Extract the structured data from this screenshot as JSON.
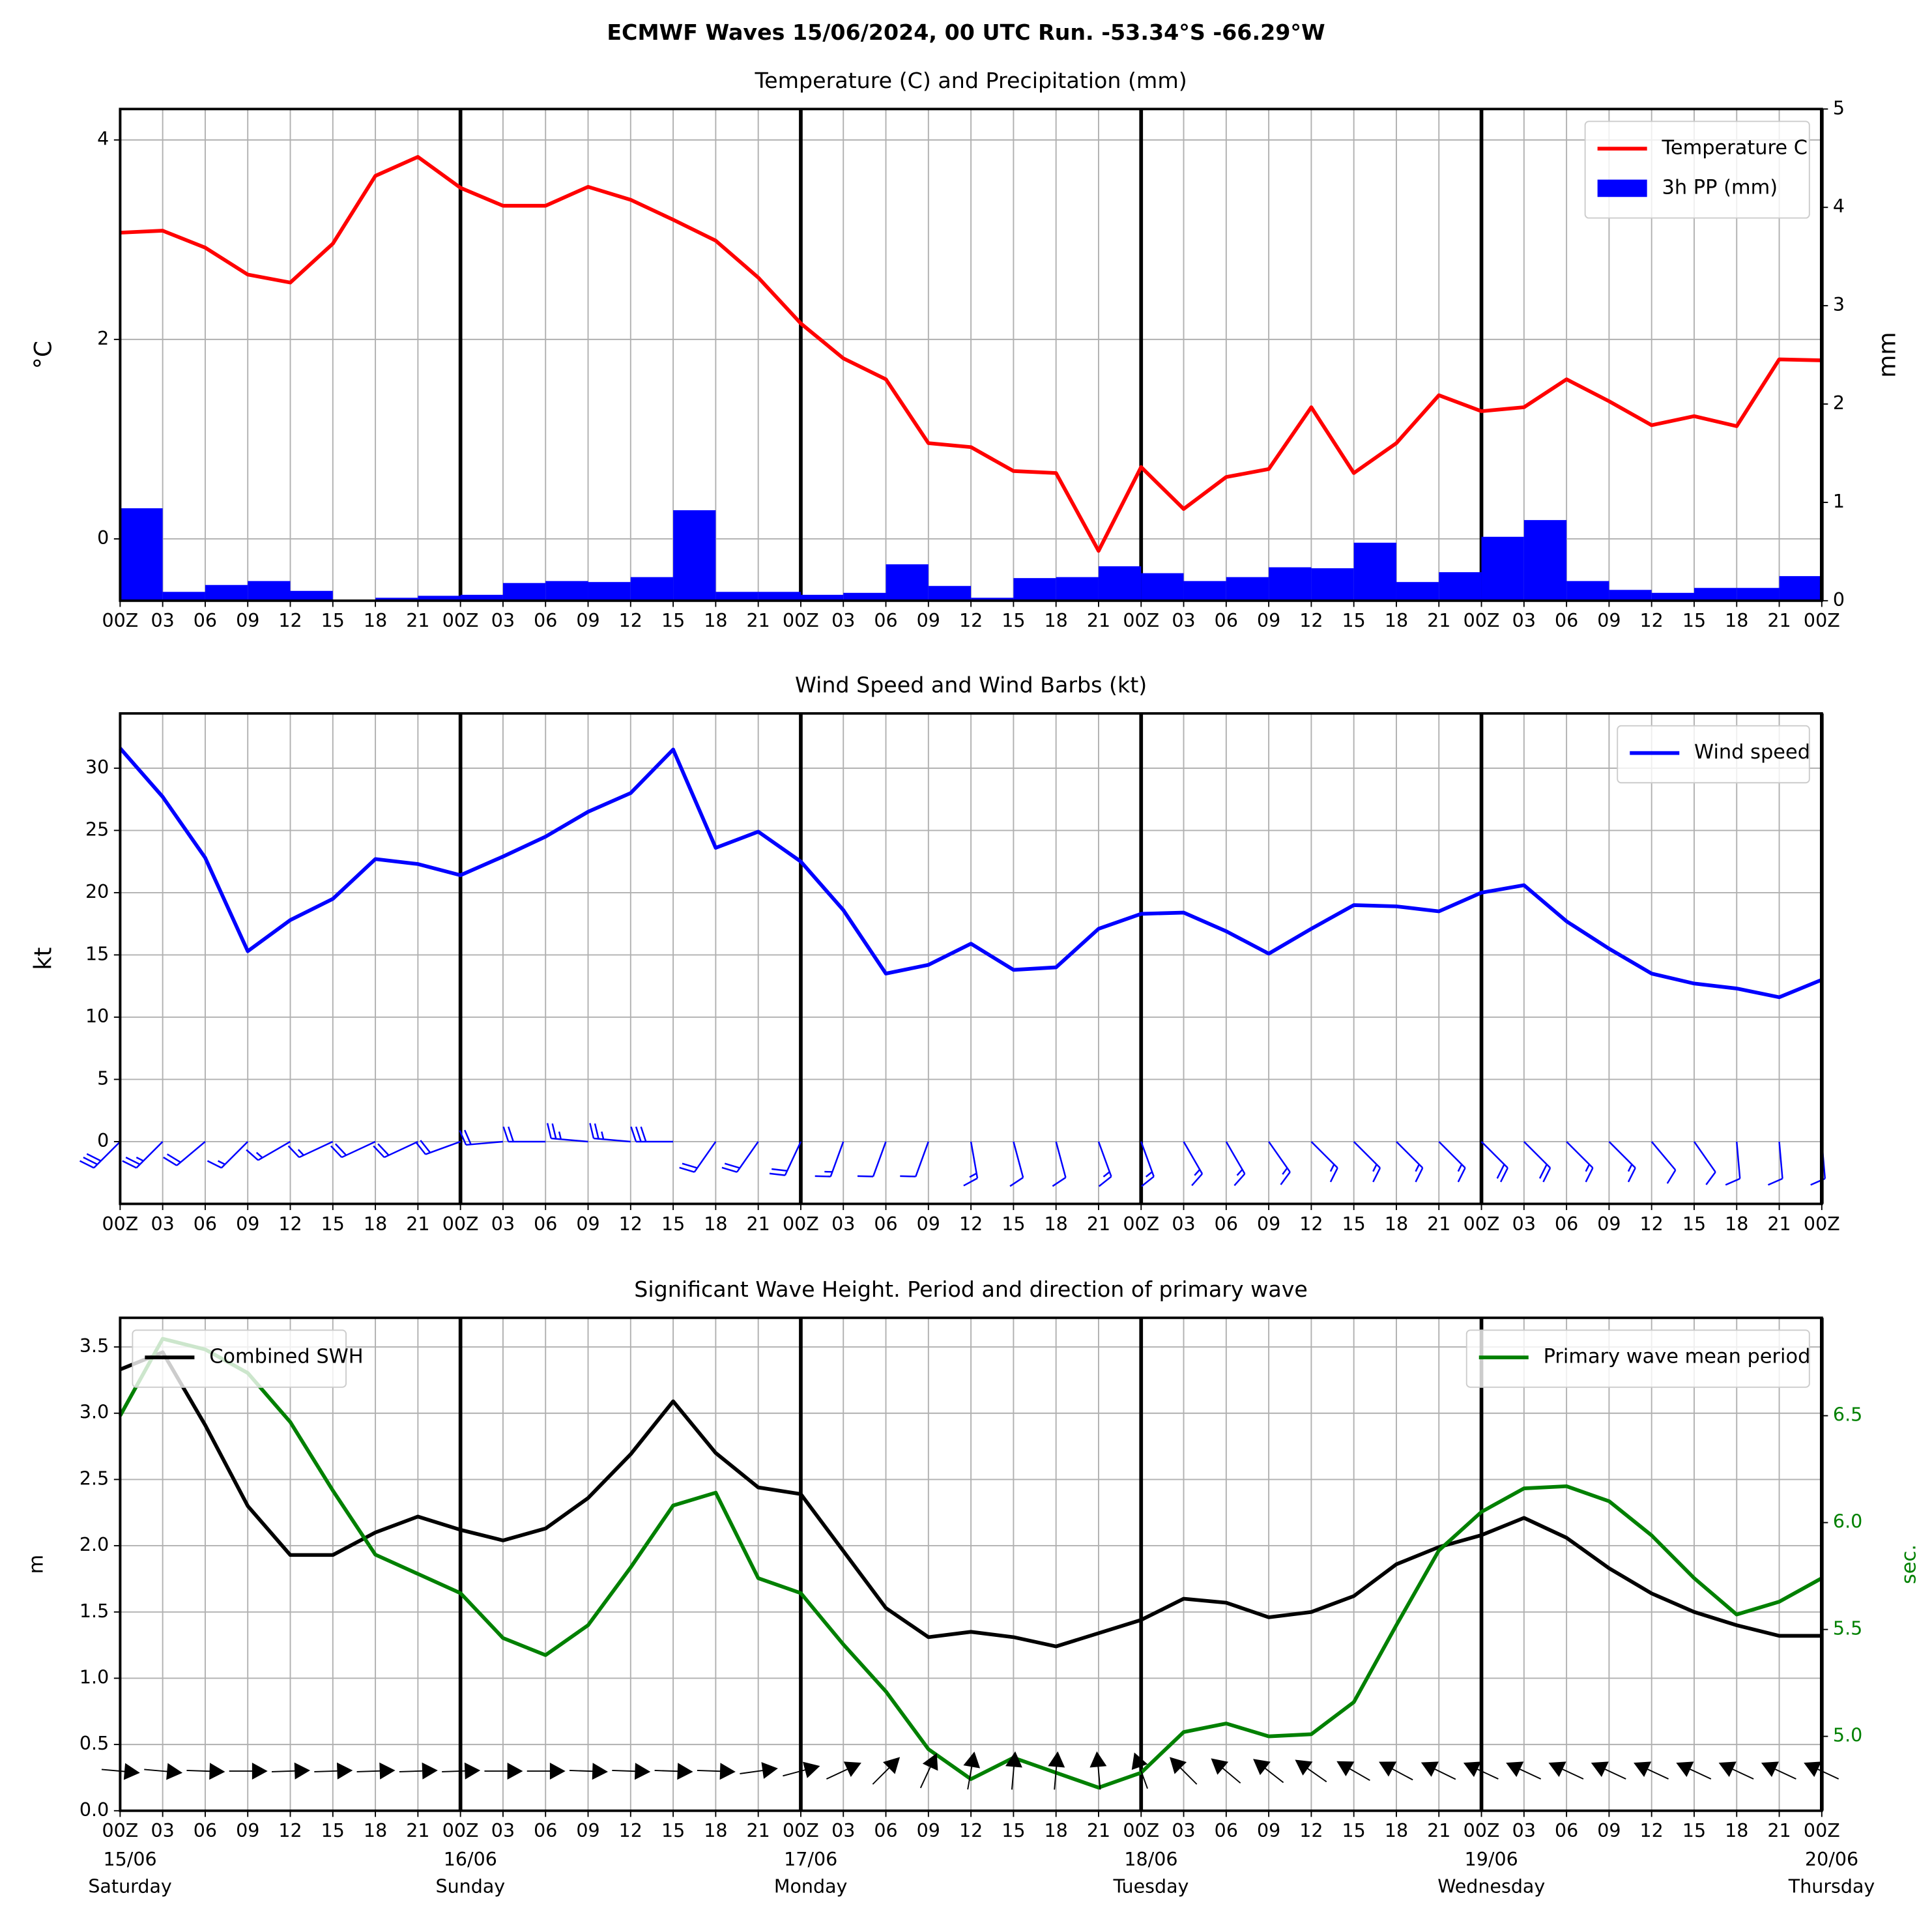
{
  "title": "ECMWF Waves 15/06/2024, 00 UTC Run. -53.34°S -66.29°W",
  "chart_data": [
    {
      "type": "line",
      "title": "Temperature (C) and Precipitation (mm)",
      "ylabel": "°C",
      "y2label": "mm",
      "categories": [
        "00Z",
        "03",
        "06",
        "09",
        "12",
        "15",
        "18",
        "21",
        "00Z",
        "03",
        "06",
        "09",
        "12",
        "15",
        "18",
        "21",
        "00Z",
        "03",
        "06",
        "09",
        "12",
        "15",
        "18",
        "21",
        "00Z",
        "03",
        "06",
        "09",
        "12",
        "15",
        "18",
        "21",
        "00Z",
        "03",
        "06",
        "09",
        "12",
        "15",
        "18",
        "21",
        "00Z"
      ],
      "ylim": [
        -0.62,
        4.31
      ],
      "yticks": [
        0,
        2,
        4
      ],
      "y2lim": [
        0,
        5
      ],
      "y2ticks": [
        0,
        1,
        2,
        3,
        4,
        5
      ],
      "grid": true,
      "legend": "upper right",
      "series": [
        {
          "name": "Temperature C",
          "color": "#ff0000",
          "values": [
            3.07,
            3.09,
            2.92,
            2.65,
            2.57,
            2.96,
            3.64,
            3.83,
            3.52,
            3.34,
            3.34,
            3.53,
            3.4,
            3.2,
            2.99,
            2.62,
            2.16,
            1.81,
            1.6,
            0.96,
            0.92,
            0.68,
            0.66,
            -0.12,
            0.72,
            0.3,
            0.62,
            0.7,
            1.32,
            0.66,
            0.96,
            1.44,
            1.28,
            1.32,
            1.6,
            1.38,
            1.14,
            1.23,
            1.13,
            1.8,
            1.79
          ]
        },
        {
          "name": "3h PP (mm)",
          "type": "bar",
          "axis": "y2",
          "color": "#0000ff",
          "values": [
            0.94,
            0.09,
            0.16,
            0.2,
            0.1,
            0.01,
            0.03,
            0.05,
            0.06,
            0.18,
            0.2,
            0.19,
            0.24,
            0.92,
            0.09,
            0.09,
            0.06,
            0.08,
            0.37,
            0.15,
            0.03,
            0.23,
            0.24,
            0.35,
            0.28,
            0.2,
            0.24,
            0.34,
            0.33,
            0.59,
            0.19,
            0.29,
            0.65,
            0.82,
            0.2,
            0.11,
            0.08,
            0.13,
            0.13,
            0.25,
            null
          ]
        }
      ]
    },
    {
      "type": "line",
      "title": "Wind Speed and Wind Barbs (kt)",
      "ylabel": "kt",
      "categories": [
        "00Z",
        "03",
        "06",
        "09",
        "12",
        "15",
        "18",
        "21",
        "00Z",
        "03",
        "06",
        "09",
        "12",
        "15",
        "18",
        "21",
        "00Z",
        "03",
        "06",
        "09",
        "12",
        "15",
        "18",
        "21",
        "00Z",
        "03",
        "06",
        "09",
        "12",
        "15",
        "18",
        "21",
        "00Z",
        "03",
        "06",
        "09",
        "12",
        "15",
        "18",
        "21",
        "00Z"
      ],
      "ylim": [
        -5,
        34.4
      ],
      "yticks": [
        0,
        5,
        10,
        15,
        20,
        25,
        30
      ],
      "grid": true,
      "legend": "upper right",
      "series": [
        {
          "name": "Wind speed",
          "color": "#0000ff",
          "values": [
            31.6,
            27.7,
            22.8,
            15.3,
            17.8,
            19.5,
            22.7,
            22.3,
            21.4,
            22.9,
            24.5,
            26.5,
            28.0,
            31.5,
            23.6,
            24.9,
            22.5,
            18.6,
            13.5,
            14.2,
            15.9,
            13.8,
            14.0,
            17.1,
            18.3,
            18.4,
            16.9,
            15.1,
            17.1,
            19.0,
            18.9,
            18.5,
            20.0,
            20.6,
            17.7,
            15.5,
            13.5,
            12.7,
            12.3,
            11.6,
            13.0
          ]
        }
      ],
      "wind_direction": [
        225,
        225,
        230,
        225,
        240,
        245,
        245,
        245,
        250,
        265,
        270,
        275,
        275,
        270,
        215,
        215,
        205,
        200,
        200,
        200,
        170,
        165,
        165,
        160,
        160,
        150,
        150,
        145,
        135,
        135,
        135,
        135,
        135,
        135,
        135,
        135,
        140,
        145,
        175,
        175,
        175
      ]
    },
    {
      "type": "line",
      "title": "Significant Wave Height. Period and direction of primary wave",
      "ylabel": "m",
      "y2label": "sec.",
      "y2color": "#008000",
      "categories": [
        "00Z",
        "03",
        "06",
        "09",
        "12",
        "15",
        "18",
        "21",
        "00Z",
        "03",
        "06",
        "09",
        "12",
        "15",
        "18",
        "21",
        "00Z",
        "03",
        "06",
        "09",
        "12",
        "15",
        "18",
        "21",
        "00Z",
        "03",
        "06",
        "09",
        "12",
        "15",
        "18",
        "21",
        "00Z",
        "03",
        "06",
        "09",
        "12",
        "15",
        "18",
        "21",
        "00Z"
      ],
      "dates": [
        "15/06",
        null,
        null,
        null,
        null,
        null,
        null,
        null,
        "16/06",
        null,
        null,
        null,
        null,
        null,
        null,
        null,
        "17/06",
        null,
        null,
        null,
        null,
        null,
        null,
        null,
        "18/06",
        null,
        null,
        null,
        null,
        null,
        null,
        null,
        "19/06",
        null,
        null,
        null,
        null,
        null,
        null,
        null,
        "20/06"
      ],
      "weekdays": [
        "Saturday",
        null,
        null,
        null,
        null,
        null,
        null,
        null,
        "Sunday",
        null,
        null,
        null,
        null,
        null,
        null,
        null,
        "Monday",
        null,
        null,
        null,
        null,
        null,
        null,
        null,
        "Tuesday",
        null,
        null,
        null,
        null,
        null,
        null,
        null,
        "Wednesday",
        null,
        null,
        null,
        null,
        null,
        null,
        null,
        "Thursday"
      ],
      "ylim": [
        0,
        3.72
      ],
      "yticks": [
        {
          "value": 0,
          "label": "0.0"
        },
        0.5,
        {
          "value": 1,
          "label": "1.0"
        },
        1.5,
        {
          "value": 2,
          "label": "2.0"
        },
        2.5,
        {
          "value": 3,
          "label": "3.0"
        },
        3.5
      ],
      "y2lim": [
        4.652,
        6.958
      ],
      "y2ticks": [
        {
          "value": 5,
          "label": "5.0"
        },
        5.5,
        {
          "value": 6,
          "label": "6.0"
        },
        6.5
      ],
      "grid": true,
      "legend": "upper left",
      "legend2": "upper right",
      "series": [
        {
          "name": "Combined SWH",
          "color": "#000000",
          "values": [
            3.33,
            3.46,
            2.91,
            2.3,
            1.93,
            1.93,
            2.1,
            2.22,
            2.12,
            2.04,
            2.13,
            2.36,
            2.69,
            3.09,
            2.7,
            2.44,
            2.39,
            1.96,
            1.53,
            1.31,
            1.35,
            1.31,
            1.24,
            1.34,
            1.44,
            1.6,
            1.57,
            1.46,
            1.5,
            1.62,
            1.86,
            1.99,
            2.08,
            2.21,
            2.06,
            1.83,
            1.64,
            1.5,
            1.4,
            1.32,
            1.32
          ]
        },
        {
          "name": "Primary wave mean period",
          "color": "#008000",
          "axis": "y2",
          "values": [
            6.5,
            6.86,
            6.81,
            6.7,
            6.47,
            6.15,
            5.85,
            5.76,
            5.67,
            5.46,
            5.38,
            5.52,
            5.79,
            6.08,
            6.14,
            5.74,
            5.67,
            5.43,
            5.21,
            4.94,
            4.8,
            4.9,
            4.83,
            4.76,
            4.83,
            5.02,
            5.06,
            5.0,
            5.01,
            5.16,
            5.52,
            5.87,
            6.05,
            6.16,
            6.17,
            6.1,
            5.94,
            5.74,
            5.57,
            5.63,
            5.74
          ]
        }
      ],
      "wave_direction": [
        275,
        275,
        272,
        270,
        268,
        268,
        268,
        268,
        268,
        270,
        270,
        272,
        272,
        272,
        272,
        262,
        255,
        245,
        225,
        205,
        190,
        185,
        185,
        175,
        160,
        135,
        130,
        128,
        125,
        120,
        118,
        116,
        115,
        115,
        115,
        115,
        115,
        115,
        115,
        115,
        115
      ]
    }
  ]
}
